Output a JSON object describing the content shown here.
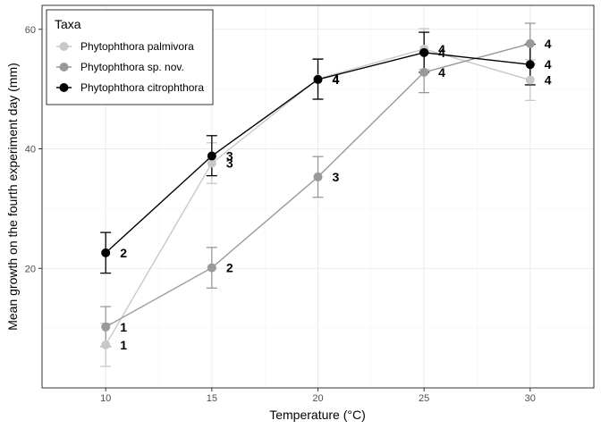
{
  "chart_data": {
    "type": "line",
    "xlabel": "Temperature (°C)",
    "ylabel": "Mean growth on the fourth experiment day (mm)",
    "xlim": [
      7,
      33
    ],
    "ylim": [
      0,
      64
    ],
    "x_ticks": [
      10,
      15,
      20,
      25,
      30
    ],
    "y_ticks": [
      20,
      40,
      60
    ],
    "grid": true,
    "legend": {
      "title": "Taxa",
      "position": "top-left"
    },
    "series": [
      {
        "name": "Phytophthora palmivora",
        "color": "#c8c8c8",
        "x": [
          10,
          15,
          20,
          25,
          30
        ],
        "y": [
          7.2,
          37.6,
          51.7,
          56.7,
          51.5
        ],
        "err_low": [
          3.6,
          34.2,
          48.3,
          53.3,
          48.1
        ],
        "err_high": [
          10.8,
          41.0,
          55.1,
          60.1,
          54.9
        ],
        "labels": [
          "1",
          "3",
          "4",
          "4",
          "4"
        ]
      },
      {
        "name": "Phytophthora sp. nov.",
        "color": "#999999",
        "x": [
          10,
          15,
          20,
          25,
          30
        ],
        "y": [
          10.2,
          20.1,
          35.3,
          52.8,
          57.6
        ],
        "err_low": [
          6.9,
          16.7,
          31.9,
          49.4,
          54.2
        ],
        "err_high": [
          13.6,
          23.5,
          38.7,
          56.2,
          61.0
        ],
        "labels": [
          "1",
          "2",
          "3",
          "4",
          "4"
        ]
      },
      {
        "name": "Phytophthora citrophthora",
        "color": "#000000",
        "x": [
          10,
          15,
          20,
          25,
          30
        ],
        "y": [
          22.6,
          38.8,
          51.6,
          56.1,
          54.1
        ],
        "err_low": [
          19.2,
          35.5,
          48.3,
          52.8,
          50.7
        ],
        "err_high": [
          26.0,
          42.2,
          55.0,
          59.5,
          57.5
        ],
        "labels": [
          "2",
          "3",
          "4",
          "4",
          "4"
        ]
      }
    ]
  }
}
